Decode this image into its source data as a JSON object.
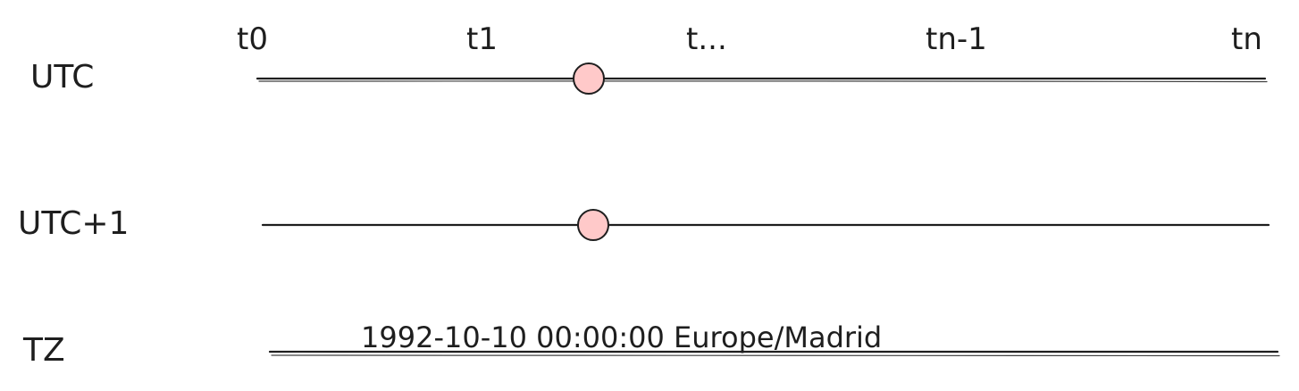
{
  "colors": {
    "ink": "#1e1e1e",
    "marker_fill": "#ffc9c9",
    "background": "#ffffff"
  },
  "rows": [
    {
      "id": "utc",
      "label": "UTC"
    },
    {
      "id": "utc1",
      "label": "UTC+1"
    },
    {
      "id": "tz",
      "label": "TZ"
    }
  ],
  "ticks": [
    "t0",
    "t1",
    "t...",
    "tn-1",
    "tn"
  ],
  "tz_value": "1992-10-10 00:00:00 Europe/Madrid"
}
